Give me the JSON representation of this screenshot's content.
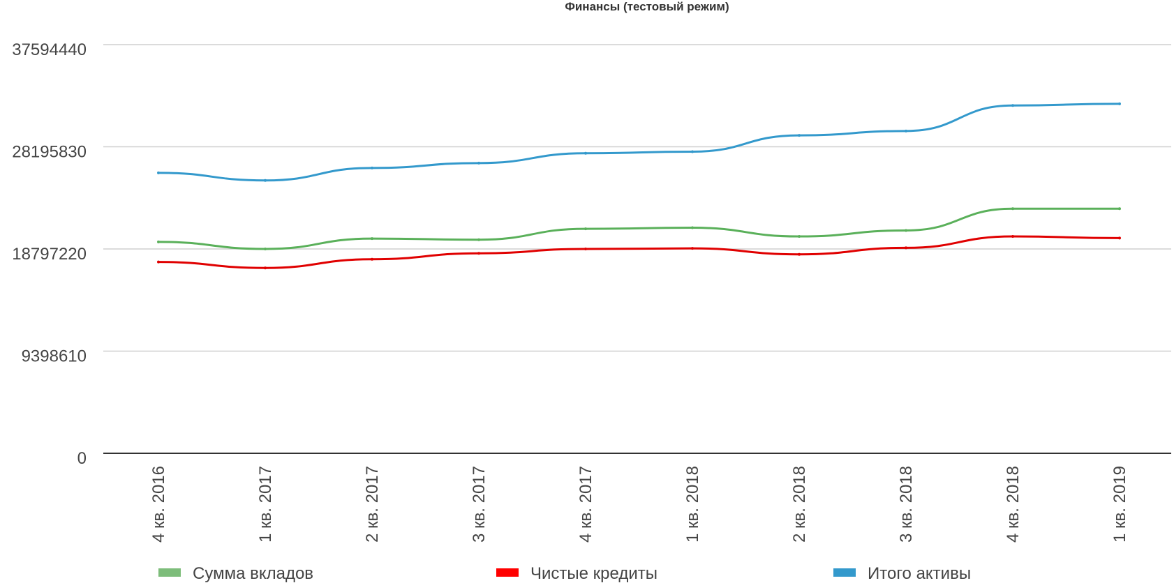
{
  "chart_data": {
    "type": "line",
    "title": "Финансы (тестовый режим)",
    "xlabel": "",
    "ylabel": "",
    "categories": [
      "4 кв. 2016",
      "1 кв. 2017",
      "2 кв. 2017",
      "3 кв. 2017",
      "4 кв. 2017",
      "1 кв. 2018",
      "2 кв. 2018",
      "3 кв. 2018",
      "4 кв. 2018",
      "1 кв. 2019"
    ],
    "y_ticks": [
      0,
      9398610,
      18797220,
      28195830,
      37594440
    ],
    "y_tick_labels": [
      "0",
      "9398610",
      "18797220",
      "28195830",
      "37594440"
    ],
    "ylim": [
      0,
      37594440
    ],
    "grid": true,
    "legend_position": "bottom",
    "series": [
      {
        "name": "Сумма вкладов",
        "color": "#5ab05a",
        "legend_color": "#7dbd7a",
        "values": [
          19450000,
          18800000,
          19750000,
          19650000,
          20650000,
          20750000,
          19950000,
          20500000,
          22500000,
          22500000
        ]
      },
      {
        "name": "Чистые кредиты",
        "color": "#e00000",
        "legend_color": "#ff0000",
        "values": [
          17600000,
          17050000,
          17850000,
          18400000,
          18800000,
          18850000,
          18300000,
          18900000,
          19950000,
          19800000
        ]
      },
      {
        "name": "Итого активы",
        "color": "#3399cc",
        "legend_color": "#3399cc",
        "values": [
          25800000,
          25100000,
          26250000,
          26700000,
          27600000,
          27750000,
          29250000,
          29650000,
          32000000,
          32150000
        ]
      }
    ]
  }
}
